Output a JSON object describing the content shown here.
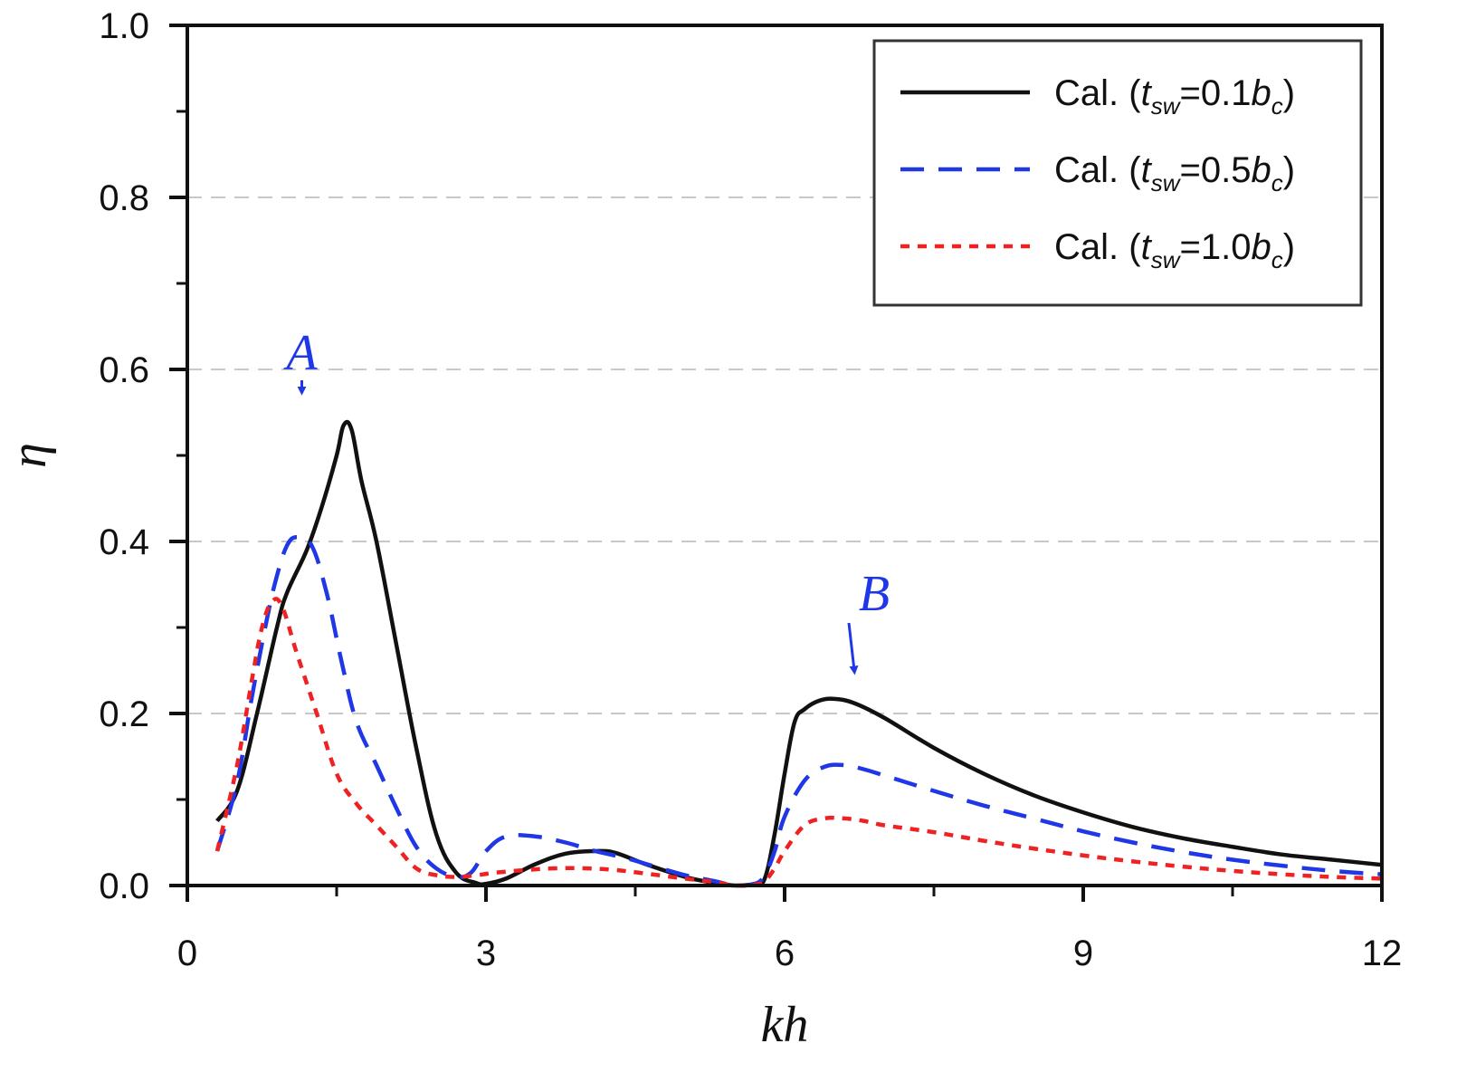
{
  "chart_data": {
    "type": "line",
    "xlabel": "kh",
    "ylabel": "η",
    "xlim": [
      0,
      12
    ],
    "ylim": [
      0,
      1.0
    ],
    "x_ticks": [
      "0",
      "3",
      "6",
      "9",
      "12"
    ],
    "x_tick_values": [
      0,
      3,
      6,
      9,
      12
    ],
    "x_minor_ticks": [
      1.5,
      4.5,
      7.5,
      10.5
    ],
    "y_ticks": [
      "0.0",
      "0.2",
      "0.4",
      "0.6",
      "0.8",
      "1.0"
    ],
    "y_tick_values": [
      0,
      0.2,
      0.4,
      0.6,
      0.8,
      1.0
    ],
    "y_minor_ticks": [
      0.1,
      0.3,
      0.5,
      0.7,
      0.9
    ],
    "grid_lines": [
      0.2,
      0.4,
      0.6,
      0.8
    ],
    "legend_position": "top-right",
    "series": [
      {
        "name": "Cal. (t_sw=0.1b_c)",
        "legend": {
          "prefix": "Cal. (",
          "var": "t",
          "sub": "sw",
          "eq": "=0.1",
          "var2": "b",
          "sub2": "c",
          "suffix": ")"
        },
        "color": "#111111",
        "dash": "none",
        "x": [
          0.3,
          0.5,
          0.7,
          0.9,
          1.0,
          1.2,
          1.35,
          1.5,
          1.57,
          1.65,
          1.75,
          1.9,
          2.1,
          2.3,
          2.5,
          2.7,
          2.9,
          3.0,
          3.2,
          3.5,
          3.8,
          4.1,
          4.3,
          4.6,
          5.0,
          5.3,
          5.5,
          5.7,
          5.8,
          5.9,
          6.0,
          6.1,
          6.2,
          6.35,
          6.5,
          6.7,
          7.0,
          7.5,
          8.0,
          8.5,
          9.0,
          9.5,
          10.0,
          10.5,
          11.0,
          11.5,
          12.0
        ],
        "values": [
          0.075,
          0.11,
          0.2,
          0.3,
          0.34,
          0.39,
          0.44,
          0.5,
          0.535,
          0.53,
          0.47,
          0.4,
          0.28,
          0.16,
          0.06,
          0.015,
          0.003,
          0.002,
          0.008,
          0.025,
          0.037,
          0.04,
          0.038,
          0.025,
          0.01,
          0.003,
          0.0,
          0.002,
          0.008,
          0.06,
          0.13,
          0.19,
          0.205,
          0.215,
          0.217,
          0.212,
          0.195,
          0.16,
          0.13,
          0.105,
          0.085,
          0.068,
          0.055,
          0.045,
          0.036,
          0.03,
          0.024
        ]
      },
      {
        "name": "Cal. (t_sw=0.5b_c)",
        "legend": {
          "prefix": "Cal. (",
          "var": "t",
          "sub": "sw",
          "eq": "=0.5",
          "var2": "b",
          "sub2": "c",
          "suffix": ")"
        },
        "color": "#1f37e6",
        "dash": "26 16",
        "x": [
          0.3,
          0.5,
          0.65,
          0.8,
          0.9,
          1.0,
          1.1,
          1.25,
          1.4,
          1.55,
          1.7,
          1.9,
          2.1,
          2.3,
          2.5,
          2.7,
          2.85,
          3.0,
          3.2,
          3.5,
          3.8,
          4.1,
          4.4,
          4.7,
          5.0,
          5.3,
          5.5,
          5.7,
          5.8,
          5.9,
          6.0,
          6.2,
          6.4,
          6.6,
          6.8,
          7.0,
          7.5,
          8.0,
          8.5,
          9.0,
          9.5,
          10.0,
          10.5,
          11.0,
          11.5,
          12.0
        ],
        "values": [
          0.04,
          0.12,
          0.22,
          0.31,
          0.36,
          0.395,
          0.405,
          0.395,
          0.34,
          0.26,
          0.19,
          0.14,
          0.09,
          0.045,
          0.02,
          0.01,
          0.015,
          0.04,
          0.057,
          0.057,
          0.05,
          0.04,
          0.032,
          0.022,
          0.012,
          0.005,
          0.0,
          0.002,
          0.012,
          0.04,
          0.08,
          0.122,
          0.138,
          0.14,
          0.135,
          0.128,
          0.11,
          0.093,
          0.078,
          0.063,
          0.05,
          0.039,
          0.03,
          0.023,
          0.017,
          0.013
        ]
      },
      {
        "name": "Cal. (t_sw=1.0b_c)",
        "legend": {
          "prefix": "Cal. (",
          "var": "t",
          "sub": "sw",
          "eq": "=1.0",
          "var2": "b",
          "sub2": "c",
          "suffix": ")"
        },
        "color": "#ee2222",
        "dash": "10 9",
        "x": [
          0.3,
          0.5,
          0.65,
          0.75,
          0.85,
          0.95,
          1.1,
          1.3,
          1.5,
          1.7,
          1.9,
          2.1,
          2.3,
          2.5,
          2.7,
          2.9,
          3.1,
          3.4,
          3.7,
          4.0,
          4.3,
          4.6,
          5.0,
          5.3,
          5.5,
          5.7,
          5.8,
          5.9,
          6.0,
          6.2,
          6.4,
          6.6,
          6.8,
          7.0,
          7.5,
          8.0,
          8.5,
          9.0,
          9.5,
          10.0,
          10.5,
          11.0,
          11.5,
          12.0
        ],
        "values": [
          0.04,
          0.14,
          0.24,
          0.3,
          0.33,
          0.325,
          0.27,
          0.2,
          0.13,
          0.095,
          0.07,
          0.045,
          0.02,
          0.012,
          0.01,
          0.012,
          0.015,
          0.018,
          0.02,
          0.02,
          0.018,
          0.014,
          0.008,
          0.004,
          0.0,
          0.001,
          0.005,
          0.02,
          0.04,
          0.07,
          0.078,
          0.078,
          0.075,
          0.07,
          0.062,
          0.052,
          0.043,
          0.035,
          0.028,
          0.022,
          0.017,
          0.013,
          0.01,
          0.008
        ]
      }
    ],
    "annotations": [
      {
        "text": "A",
        "color": "#1f37e6",
        "x": 1.15,
        "y": 0.6,
        "arrow_to": [
          1.15,
          0.575
        ]
      },
      {
        "text": "B",
        "color": "#1f37e6",
        "x": 6.9,
        "y": 0.32,
        "arrow_to": [
          6.7,
          0.25
        ]
      }
    ]
  }
}
